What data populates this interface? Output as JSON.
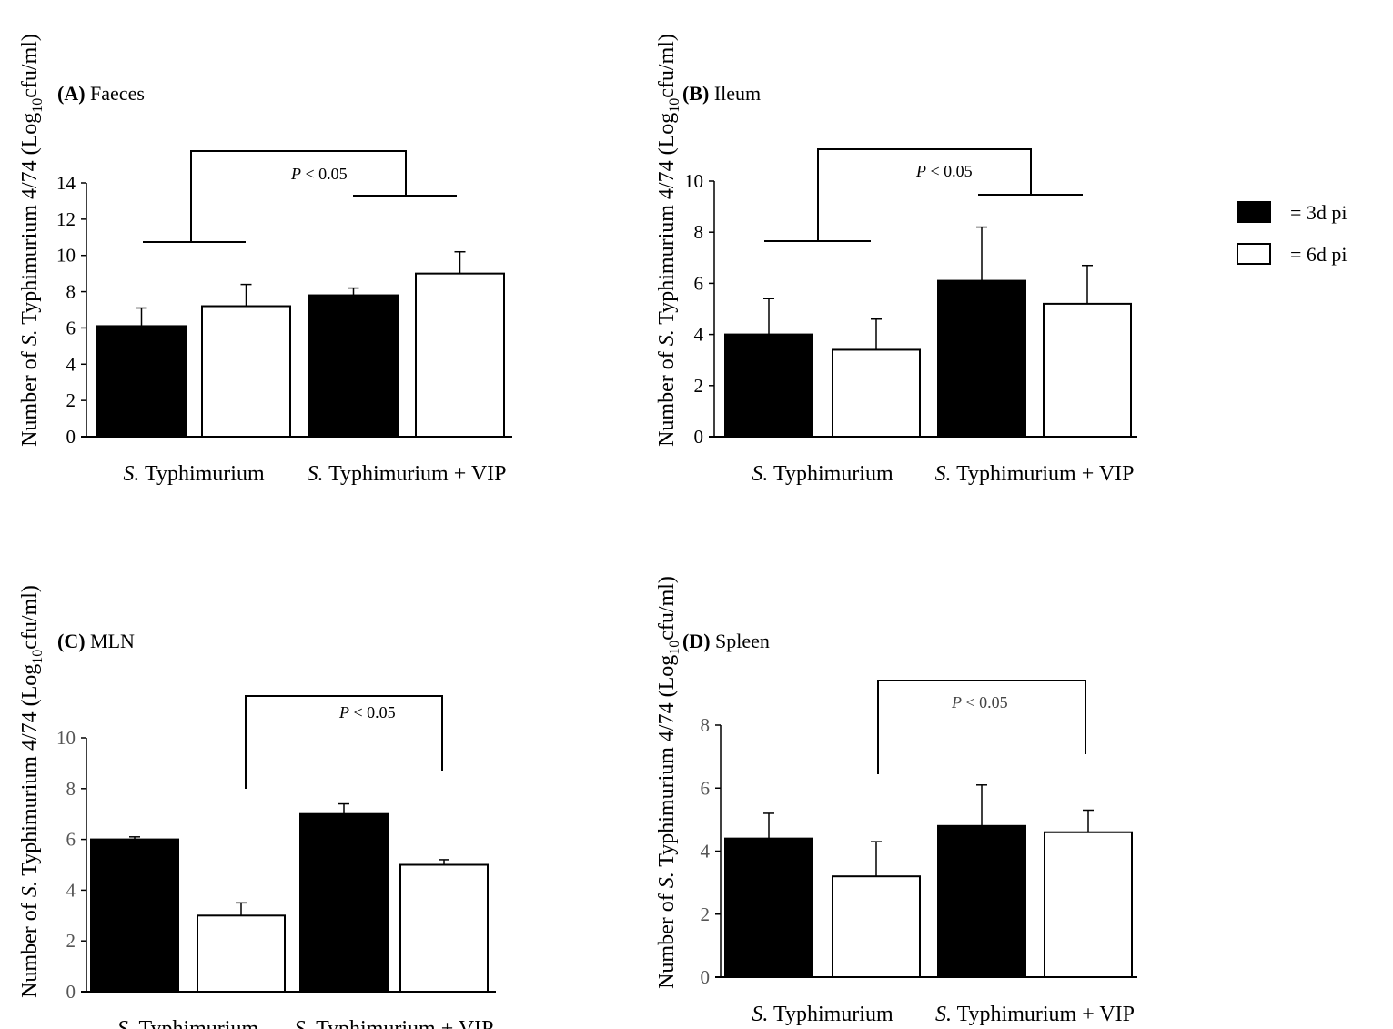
{
  "chart_data": [
    {
      "type": "bar",
      "panel_label": "(A)",
      "title": "Faeces",
      "ylabel_prefix": "Number of ",
      "ylabel_italic": "S.",
      "ylabel_mid": " Typhimurium 4/74 (Log",
      "ylabel_sub": "10",
      "ylabel_suffix": "cfu/ml)",
      "categories": [
        {
          "italic": "S.",
          "text": " Typhimurium"
        },
        {
          "italic": "S.",
          "text": " Typhimurium + VIP"
        }
      ],
      "ylim": [
        0,
        14
      ],
      "yticks": [
        "0",
        "2",
        "4",
        "6",
        "8",
        "10",
        "12",
        "14"
      ],
      "series": [
        {
          "name": "3d pi",
          "values": [
            6.1,
            7.8
          ],
          "errors": [
            1.0,
            0.4
          ]
        },
        {
          "name": "6d pi",
          "values": [
            7.2,
            9.0
          ],
          "errors": [
            1.2,
            1.2
          ]
        }
      ],
      "significance": {
        "p": "P",
        "text": " < 0.05",
        "type": "grouped"
      }
    },
    {
      "type": "bar",
      "panel_label": "(B)",
      "title": "Ileum",
      "ylabel_prefix": "Number of ",
      "ylabel_italic": "S.",
      "ylabel_mid": " Typhimurium 4/74 (Log",
      "ylabel_sub": "10",
      "ylabel_suffix": "cfu/ml)",
      "categories": [
        {
          "italic": "S.",
          "text": " Typhimurium"
        },
        {
          "italic": "S.",
          "text": " Typhimurium + VIP"
        }
      ],
      "ylim": [
        0,
        10
      ],
      "yticks": [
        "0",
        "2",
        "4",
        "6",
        "8",
        "10"
      ],
      "series": [
        {
          "name": "3d pi",
          "values": [
            4.0,
            6.1
          ],
          "errors": [
            1.4,
            2.1
          ]
        },
        {
          "name": "6d pi",
          "values": [
            3.4,
            5.2
          ],
          "errors": [
            1.2,
            1.5
          ]
        }
      ],
      "significance": {
        "p": "P",
        "text": " < 0.05",
        "type": "grouped"
      }
    },
    {
      "type": "bar",
      "panel_label": "(C)",
      "title": "MLN",
      "ylabel_prefix": "Number of ",
      "ylabel_italic": "S.",
      "ylabel_mid": " Typhimurium 4/74 (Log",
      "ylabel_sub": "10",
      "ylabel_suffix": "cfu/ml)",
      "categories": [
        {
          "italic": "S.",
          "text": " Typhimurium"
        },
        {
          "italic": "S.",
          "text": " Typhimurium + VIP"
        }
      ],
      "ylim": [
        0,
        10
      ],
      "yticks": [
        "0",
        "2",
        "4",
        "6",
        "8",
        "10"
      ],
      "series": [
        {
          "name": "3d pi",
          "values": [
            6.0,
            7.0
          ],
          "errors": [
            0.1,
            0.4
          ]
        },
        {
          "name": "6d pi",
          "values": [
            3.0,
            5.0
          ],
          "errors": [
            0.5,
            0.2
          ]
        }
      ],
      "significance": {
        "p": "P",
        "text": " < 0.05",
        "type": "pair"
      }
    },
    {
      "type": "bar",
      "panel_label": "(D)",
      "title": "Spleen",
      "ylabel_prefix": "Number of ",
      "ylabel_italic": "S.",
      "ylabel_mid": " Typhimurium 4/74 (Log",
      "ylabel_sub": "10",
      "ylabel_suffix": "cfu/ml)",
      "categories": [
        {
          "italic": "S.",
          "text": " Typhimurium"
        },
        {
          "italic": "S.",
          "text": " Typhimurium + VIP"
        }
      ],
      "ylim": [
        0,
        8
      ],
      "yticks": [
        "0",
        "2",
        "4",
        "6",
        "8"
      ],
      "series": [
        {
          "name": "3d pi",
          "values": [
            4.4,
            4.8
          ],
          "errors": [
            0.8,
            1.3
          ]
        },
        {
          "name": "6d pi",
          "values": [
            3.2,
            4.6
          ],
          "errors": [
            1.1,
            0.7
          ]
        }
      ],
      "significance": {
        "p": "P",
        "text": " < 0.05",
        "type": "pair"
      }
    }
  ],
  "legend": [
    {
      "label": "= 3d pi",
      "color": "#000000"
    },
    {
      "label": "= 6d pi",
      "color": "#ffffff"
    }
  ],
  "colors": {
    "filled": "#000000",
    "open": "#ffffff",
    "tick_label_gray": "#555555"
  }
}
